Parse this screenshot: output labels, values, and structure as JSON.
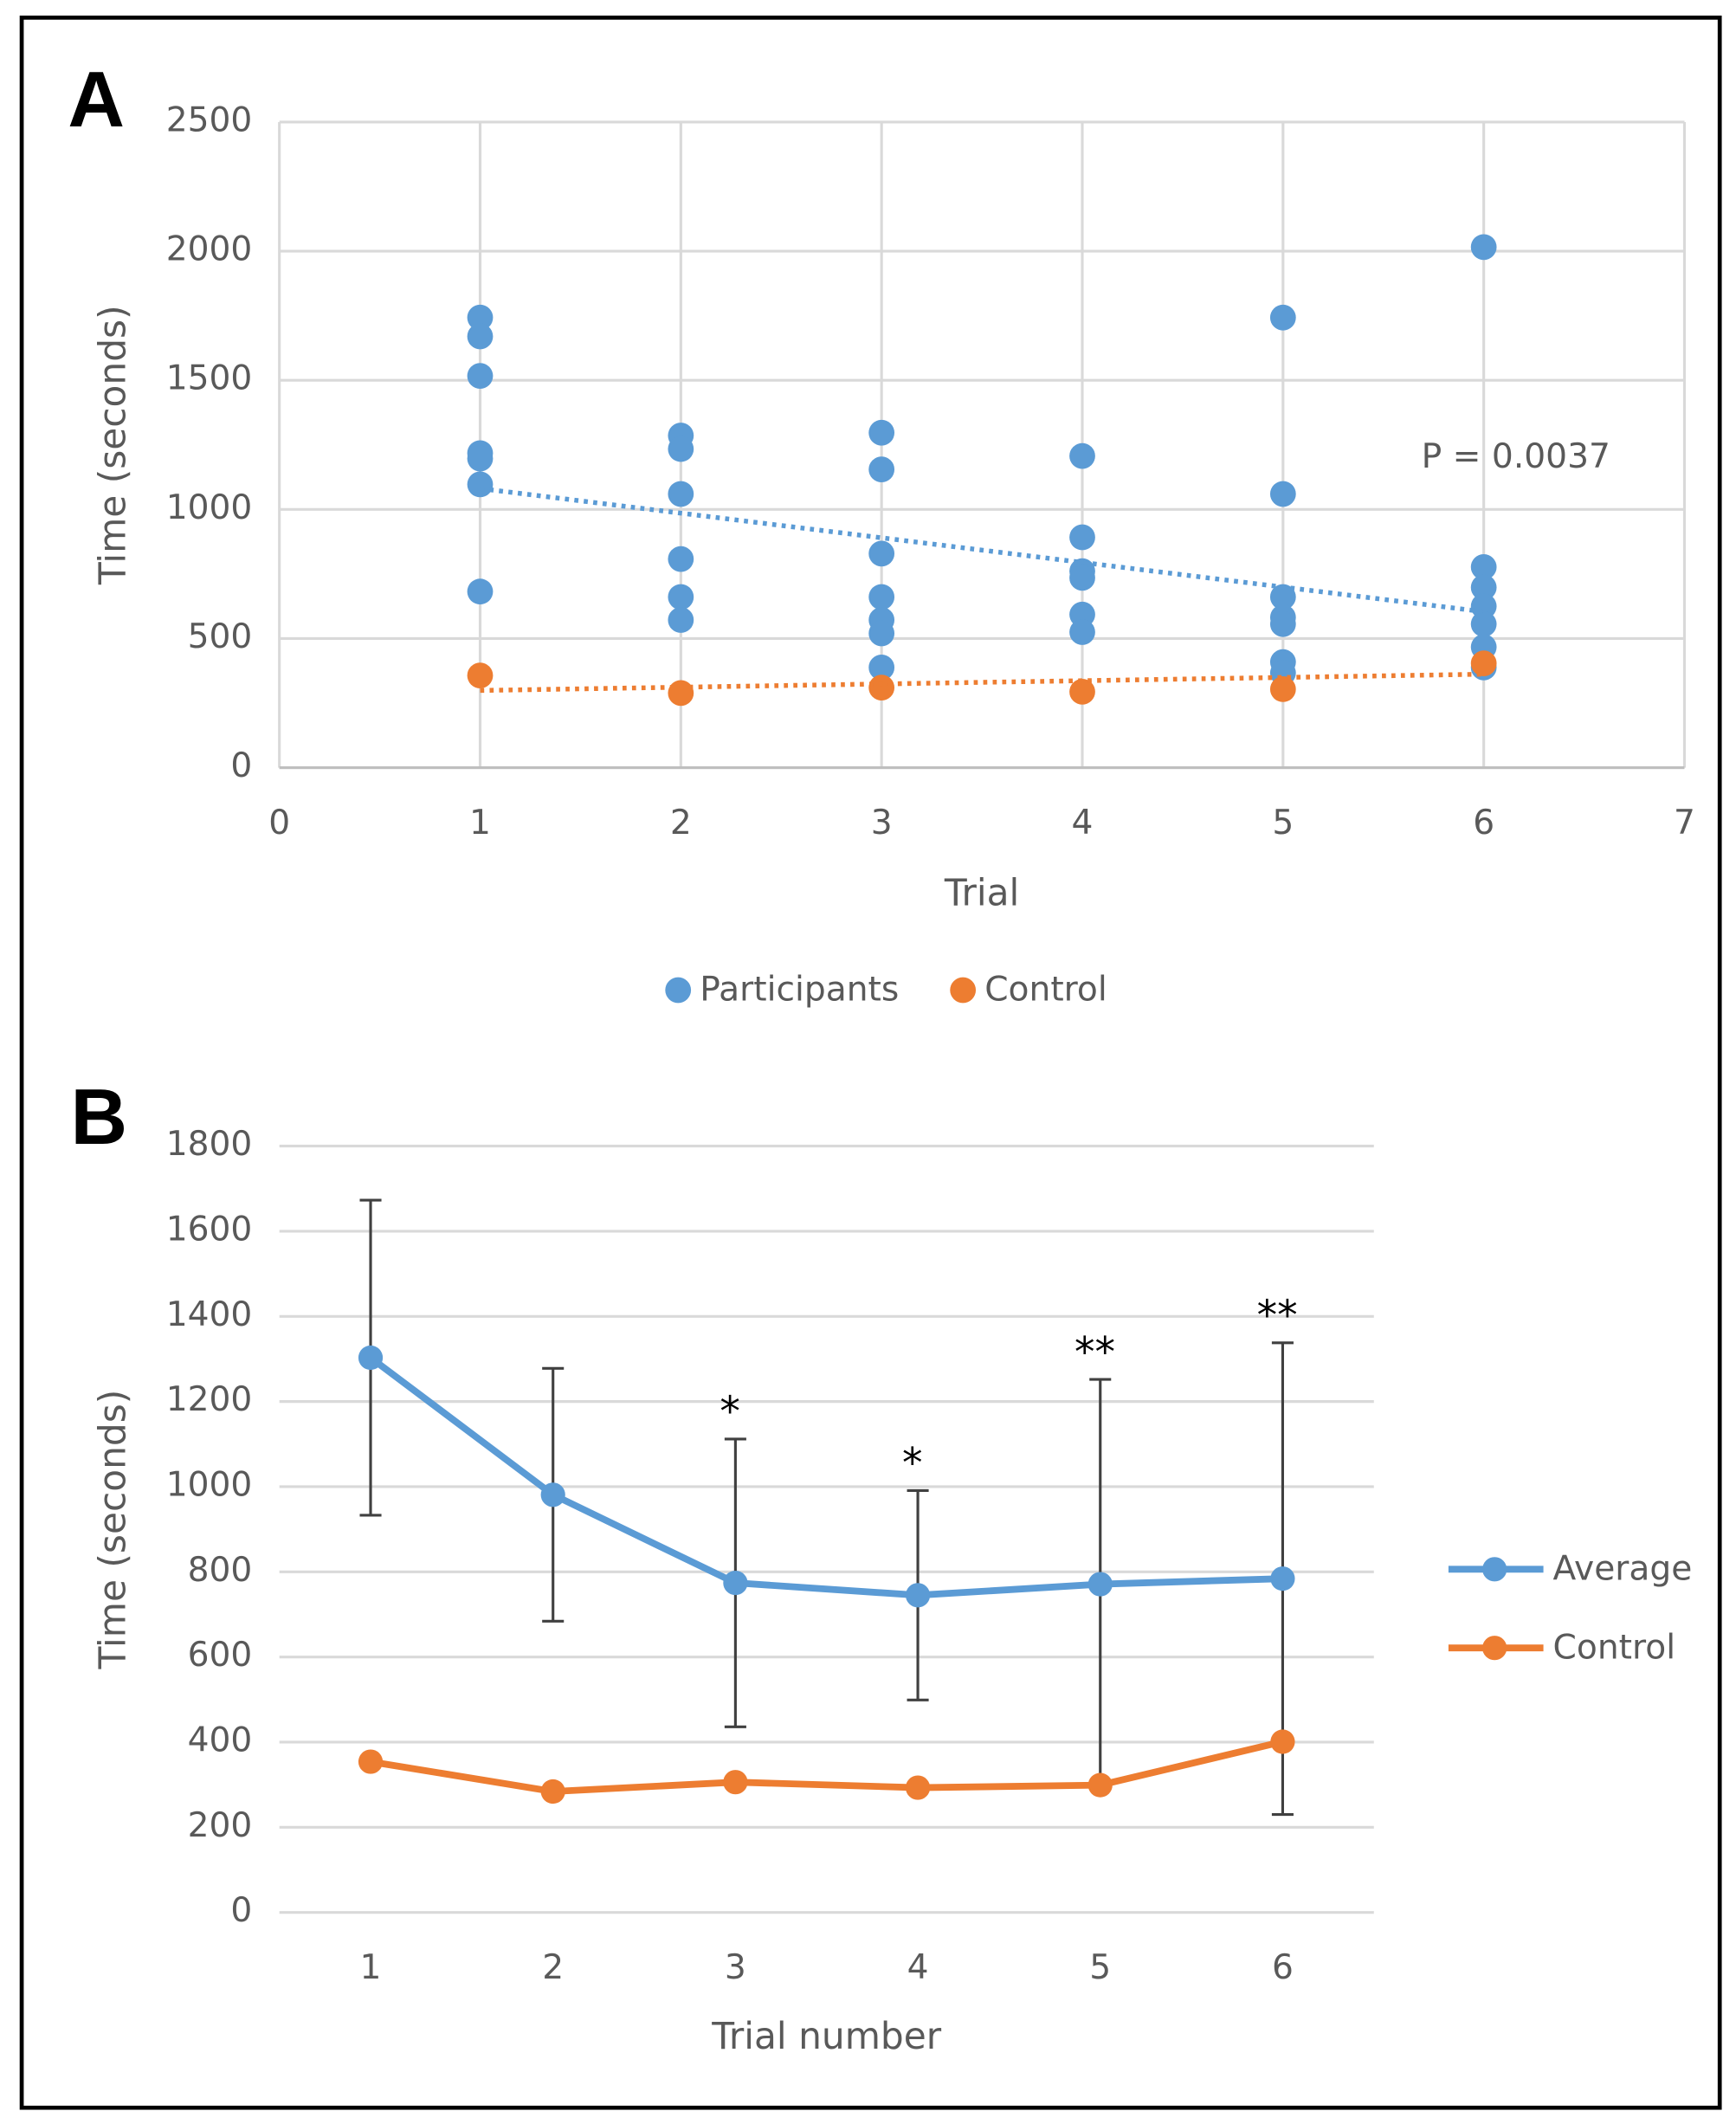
{
  "chart_data": [
    {
      "type": "scatter",
      "panel": "A",
      "x_label": "Trial",
      "y_label": "Time (seconds)",
      "xlim": [
        0,
        7
      ],
      "xticks": [
        0,
        1,
        2,
        3,
        4,
        5,
        6,
        7
      ],
      "ylim": [
        0,
        2500
      ],
      "yticks": [
        0,
        500,
        1000,
        1500,
        2000,
        2500
      ],
      "grid": true,
      "legend": "bottom",
      "series": [
        {
          "name": "Participants",
          "color": "#5b9bd5",
          "x": [
            1,
            1,
            1,
            1,
            1,
            1,
            1,
            2,
            2,
            2,
            2,
            2,
            2,
            3,
            3,
            3,
            3,
            3,
            3,
            3,
            4,
            4,
            4,
            4,
            4,
            4,
            5,
            5,
            5,
            5,
            5,
            5,
            5,
            6,
            6,
            6,
            6,
            6,
            6,
            6
          ],
          "values": [
            1743,
            1670,
            1517,
            1218,
            1197,
            1097,
            682,
            1286,
            1234,
            1060,
            808,
            661,
            572,
            1297,
            1155,
            829,
            661,
            572,
            520,
            388,
            1207,
            892,
            761,
            735,
            593,
            525,
            1743,
            1060,
            661,
            582,
            556,
            409,
            367,
            2016,
            777,
            698,
            625,
            556,
            467,
            388
          ]
        },
        {
          "name": "Control",
          "color": "#ed7d31",
          "x": [
            1,
            2,
            3,
            4,
            5,
            6
          ],
          "values": [
            357,
            289,
            310,
            294,
            304,
            404
          ]
        }
      ],
      "trendlines": [
        {
          "color": "#5b9bd5",
          "x": [
            1,
            6
          ],
          "values": [
            1081,
            604
          ]
        },
        {
          "color": "#ed7d31",
          "x": [
            1,
            6
          ],
          "values": [
            299,
            362
          ]
        }
      ],
      "annotation": "P = 0.0037"
    },
    {
      "type": "line",
      "panel": "B",
      "x_label": "Trial number",
      "y_label": "Time (seconds)",
      "categories": [
        "1",
        "2",
        "3",
        "4",
        "5",
        "6"
      ],
      "ylim": [
        0,
        1800
      ],
      "yticks": [
        0,
        200,
        400,
        600,
        800,
        1000,
        1200,
        1400,
        1600,
        1800
      ],
      "grid": true,
      "legend": "right",
      "series": [
        {
          "name": "Average",
          "color": "#5b9bd5",
          "values": [
            1303,
            981,
            774,
            745,
            771,
            784
          ],
          "errors": [
            370,
            297,
            338,
            246,
            481,
            554
          ]
        },
        {
          "name": "Control",
          "color": "#ed7d31",
          "values": [
            354,
            284,
            306,
            293,
            299,
            401
          ]
        }
      ],
      "annotations": [
        null,
        null,
        "*",
        "*",
        "**",
        "**"
      ]
    }
  ]
}
